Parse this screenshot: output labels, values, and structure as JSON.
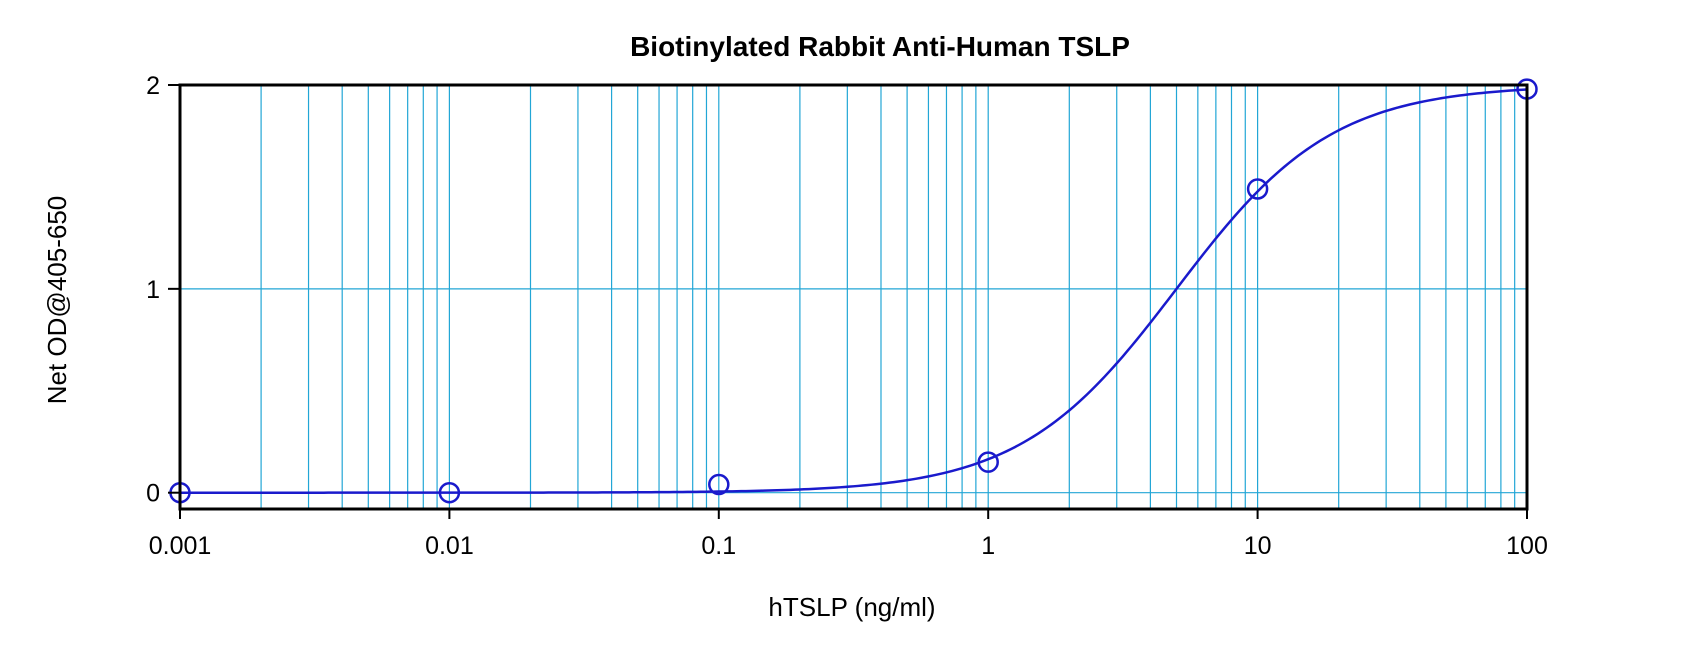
{
  "chart_data": {
    "type": "scatter",
    "title": "Biotinylated Rabbit Anti-Human TSLP",
    "xlabel": "hTSLP (ng/ml)",
    "ylabel": "Net OD@405-650",
    "x_scale": "log",
    "xlim": [
      0.001,
      100
    ],
    "ylim": [
      -0.08,
      2.0
    ],
    "x_ticks": [
      0.001,
      0.01,
      0.1,
      1,
      10,
      100
    ],
    "x_tick_labels": [
      "0.001",
      "0.01",
      "0.1",
      "1",
      "10",
      "100"
    ],
    "y_ticks": [
      0,
      1,
      2
    ],
    "y_tick_labels": [
      "0",
      "1",
      "2"
    ],
    "grid": true,
    "legend": "none",
    "series": [
      {
        "x": [
          0.001,
          0.01,
          0.1,
          1,
          10,
          100
        ],
        "y": [
          0.0,
          0.0,
          0.04,
          0.15,
          1.49,
          1.98
        ],
        "marker": "open-circle",
        "color": "#1a1acc"
      }
    ],
    "fit_curve": {
      "model": "4PL",
      "bottom": 0.0,
      "top": 2.0,
      "ec50": 5.0,
      "hill": 1.5,
      "color": "#1a1acc"
    },
    "grid_color": "#22a6d6",
    "frame_color": "#000000"
  }
}
